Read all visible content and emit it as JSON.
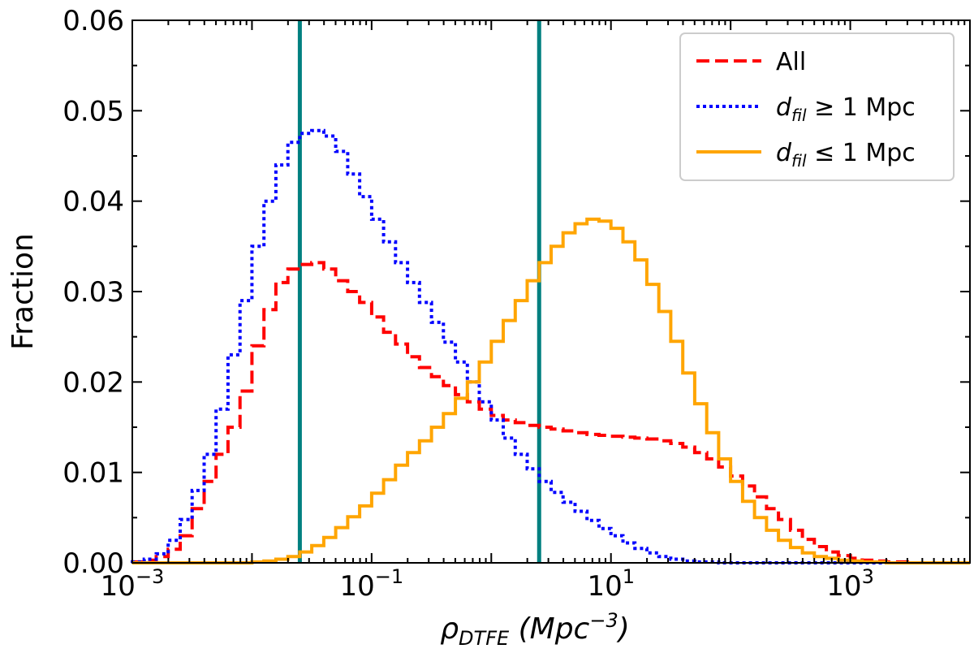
{
  "chart_data": {
    "type": "line",
    "subtype": "step-histogram",
    "title": "",
    "xlabel": {
      "main": "ρ",
      "sub": "DTFE",
      "unit_open": " (Mpc",
      "unit_sup": "−3",
      "unit_close": ")"
    },
    "ylabel": "Fraction",
    "xscale": "log",
    "xlim_log10": [
      -3,
      4
    ],
    "ylim": [
      0,
      0.06
    ],
    "x_ticks": [
      {
        "log10": -3,
        "base": "10",
        "exp": "−3"
      },
      {
        "log10": -1,
        "base": "10",
        "exp": "−1"
      },
      {
        "log10": 1,
        "base": "10",
        "exp": "1"
      },
      {
        "log10": 3,
        "base": "10",
        "exp": "3"
      }
    ],
    "y_ticks": [
      {
        "value": 0.0,
        "label": "0.00"
      },
      {
        "value": 0.01,
        "label": "0.01"
      },
      {
        "value": 0.02,
        "label": "0.02"
      },
      {
        "value": 0.03,
        "label": "0.03"
      },
      {
        "value": 0.04,
        "label": "0.04"
      },
      {
        "value": 0.05,
        "label": "0.05"
      },
      {
        "value": 0.06,
        "label": "0.06"
      }
    ],
    "vertical_lines": [
      {
        "x_log10": -1.6,
        "color": "#008080"
      },
      {
        "x_log10": 0.4,
        "color": "#008080"
      }
    ],
    "bins_log10": {
      "start": -3.0,
      "step": 0.1,
      "count": 70
    },
    "legend_position": "top-right",
    "series": [
      {
        "name": "All",
        "legend_main": "All",
        "legend_sub": "",
        "legend_rest": "",
        "color": "#ff0000",
        "dash": "dashed",
        "values": [
          0.0001,
          0.0003,
          0.0007,
          0.0015,
          0.003,
          0.006,
          0.009,
          0.012,
          0.015,
          0.019,
          0.024,
          0.028,
          0.031,
          0.0325,
          0.033,
          0.0332,
          0.0325,
          0.0312,
          0.03,
          0.0288,
          0.0272,
          0.0255,
          0.0242,
          0.0228,
          0.0216,
          0.0206,
          0.0196,
          0.0186,
          0.0178,
          0.017,
          0.0163,
          0.0158,
          0.0155,
          0.0152,
          0.015,
          0.0148,
          0.0146,
          0.0144,
          0.0142,
          0.0141,
          0.014,
          0.0139,
          0.0138,
          0.0137,
          0.0135,
          0.0132,
          0.0128,
          0.0122,
          0.0115,
          0.0106,
          0.0096,
          0.0085,
          0.0073,
          0.006,
          0.0048,
          0.0036,
          0.0026,
          0.0018,
          0.0012,
          0.0008,
          0.0005,
          0.0003,
          0.0002,
          0.0001,
          0.0001,
          0.0,
          0.0,
          0.0,
          0.0,
          0.0
        ]
      },
      {
        "name": "d_fil ≥ 1 Mpc",
        "legend_main": "d",
        "legend_sub": "fil",
        "legend_rest": " ≥ 1 Mpc",
        "color": "#0000ff",
        "dash": "dotted",
        "values": [
          0.0001,
          0.0004,
          0.001,
          0.0025,
          0.0048,
          0.008,
          0.012,
          0.017,
          0.023,
          0.029,
          0.035,
          0.04,
          0.044,
          0.0465,
          0.0475,
          0.0478,
          0.0472,
          0.0455,
          0.043,
          0.0405,
          0.038,
          0.0355,
          0.0332,
          0.031,
          0.0288,
          0.0266,
          0.0244,
          0.0222,
          0.02,
          0.0178,
          0.0158,
          0.0138,
          0.012,
          0.0104,
          0.009,
          0.0078,
          0.0067,
          0.0057,
          0.0047,
          0.0038,
          0.003,
          0.0022,
          0.0016,
          0.0011,
          0.0007,
          0.0004,
          0.0002,
          0.0001,
          0.0001,
          0.0,
          0.0,
          0.0,
          0.0,
          0.0,
          0.0,
          0.0,
          0.0,
          0.0,
          0.0,
          0.0,
          0.0,
          0.0,
          0.0,
          0.0,
          0.0,
          0.0,
          0.0,
          0.0,
          0.0,
          0.0
        ]
      },
      {
        "name": "d_fil ≤ 1 Mpc",
        "legend_main": "d",
        "legend_sub": "fil",
        "legend_rest": " ≤ 1 Mpc",
        "color": "#ffa500",
        "dash": "solid",
        "values": [
          0.0,
          0.0,
          0.0,
          0.0,
          0.0,
          0.0,
          0.0,
          0.0,
          0.0,
          0.0,
          0.0001,
          0.0002,
          0.0004,
          0.0007,
          0.0012,
          0.0019,
          0.0028,
          0.0039,
          0.0051,
          0.0063,
          0.0077,
          0.0092,
          0.0108,
          0.0122,
          0.0135,
          0.015,
          0.0165,
          0.0182,
          0.02,
          0.0222,
          0.0245,
          0.0268,
          0.029,
          0.0312,
          0.0332,
          0.035,
          0.0365,
          0.0375,
          0.038,
          0.0378,
          0.037,
          0.0355,
          0.0335,
          0.0308,
          0.0278,
          0.0245,
          0.021,
          0.0176,
          0.0144,
          0.0115,
          0.009,
          0.0068,
          0.005,
          0.0036,
          0.0025,
          0.0017,
          0.0011,
          0.0007,
          0.0005,
          0.0003,
          0.0002,
          0.0001,
          0.0001,
          0.0,
          0.0,
          0.0,
          0.0,
          0.0,
          0.0,
          0.0
        ]
      }
    ]
  }
}
